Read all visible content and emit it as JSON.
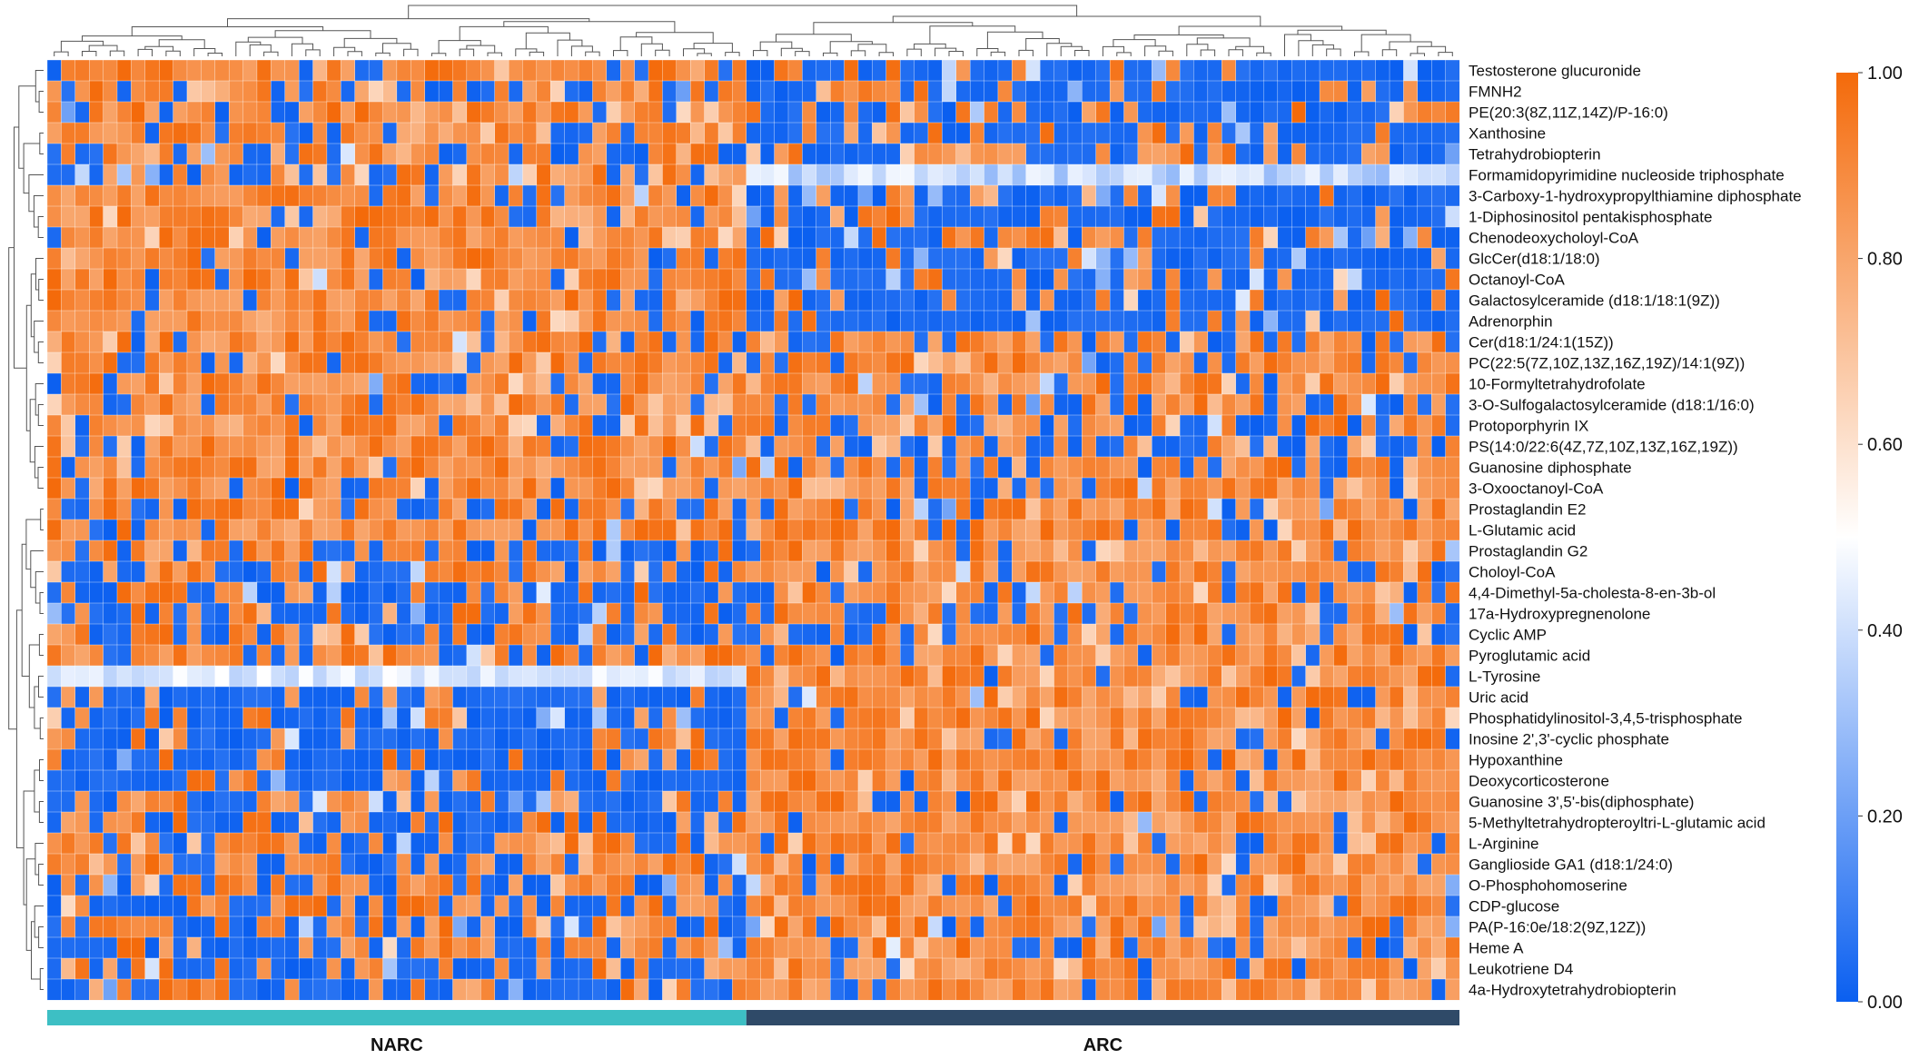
{
  "chart_data": {
    "type": "heatmap",
    "title": "",
    "rows": [
      "Testosterone glucuronide",
      "FMNH2",
      "PE(20:3(8Z,11Z,14Z)/P-16:0)",
      "Xanthosine",
      "Tetrahydrobiopterin",
      "Formamidopyrimidine nucleoside triphosphate",
      "3-Carboxy-1-hydroxypropylthiamine diphosphate",
      "1-Diphosinositol pentakisphosphate",
      "Chenodeoxycholoyl-CoA",
      "GlcCer(d18:1/18:0)",
      "Octanoyl-CoA",
      "Galactosylceramide (d18:1/18:1(9Z))",
      "Adrenorphin",
      "Cer(d18:1/24:1(15Z))",
      "PC(22:5(7Z,10Z,13Z,16Z,19Z)/14:1(9Z))",
      "10-Formyltetrahydrofolate",
      "3-O-Sulfogalactosylceramide (d18:1/16:0)",
      "Protoporphyrin IX",
      "PS(14:0/22:6(4Z,7Z,10Z,13Z,16Z,19Z))",
      "Guanosine diphosphate",
      "3-Oxooctanoyl-CoA",
      "Prostaglandin E2",
      "L-Glutamic acid",
      "Prostaglandin G2",
      "Choloyl-CoA",
      "4,4-Dimethyl-5a-cholesta-8-en-3b-ol",
      "17a-Hydroxypregnenolone",
      "Cyclic AMP",
      "Pyroglutamic acid",
      "L-Tyrosine",
      "Uric acid",
      "Phosphatidylinositol-3,4,5-trisphosphate",
      "Inosine 2',3'-cyclic phosphate",
      "Hypoxanthine",
      "Deoxycorticosterone",
      "Guanosine 3',5'-bis(diphosphate)",
      "5-Methyltetrahydropteroyltri-L-glutamic acid",
      "L-Arginine",
      "Ganglioside GA1 (d18:1/24:0)",
      "O-Phosphohomoserine",
      "CDP-glucose",
      "PA(P-16:0e/18:2(9Z,12Z))",
      "Heme A",
      "Leukotriene D4",
      "4a-Hydroxytetrahydrobiopterin"
    ],
    "groups": [
      {
        "name": "NARC",
        "samples": 50,
        "color": "#3dbfc4"
      },
      {
        "name": "ARC",
        "samples": 51,
        "color": "#2f4a68"
      }
    ],
    "color_scale": {
      "min": 0.0,
      "max": 1.0,
      "stops": [
        "#0a5ff0",
        "#ffffff",
        "#f46a0a"
      ],
      "ticks": [
        "0.00",
        "0.20",
        "0.40",
        "0.60",
        "0.80",
        "1.00"
      ]
    },
    "row_level_narc": [
      0.84,
      0.72,
      0.8,
      0.86,
      0.7,
      0.63,
      0.9,
      0.9,
      0.88,
      0.84,
      0.88,
      0.86,
      0.78,
      0.82,
      0.84,
      0.78,
      0.82,
      0.86,
      0.84,
      0.85,
      0.86,
      0.64,
      0.84,
      0.5,
      0.52,
      0.3,
      0.42,
      0.48,
      0.76,
      0.38,
      0.24,
      0.22,
      0.28,
      0.3,
      0.26,
      0.36,
      0.45,
      0.56,
      0.6,
      0.6,
      0.6,
      0.5,
      0.45,
      0.44,
      0.35
    ],
    "row_level_arc": [
      0.22,
      0.22,
      0.3,
      0.18,
      0.46,
      0.34,
      0.3,
      0.26,
      0.3,
      0.24,
      0.24,
      0.22,
      0.12,
      0.72,
      0.78,
      0.74,
      0.62,
      0.58,
      0.58,
      0.72,
      0.76,
      0.72,
      0.8,
      0.76,
      0.76,
      0.7,
      0.7,
      0.7,
      0.86,
      0.86,
      0.88,
      0.9,
      0.88,
      0.86,
      0.86,
      0.86,
      0.88,
      0.86,
      0.86,
      0.86,
      0.84,
      0.86,
      0.86,
      0.88,
      0.9
    ],
    "pattern_seed": 97
  }
}
